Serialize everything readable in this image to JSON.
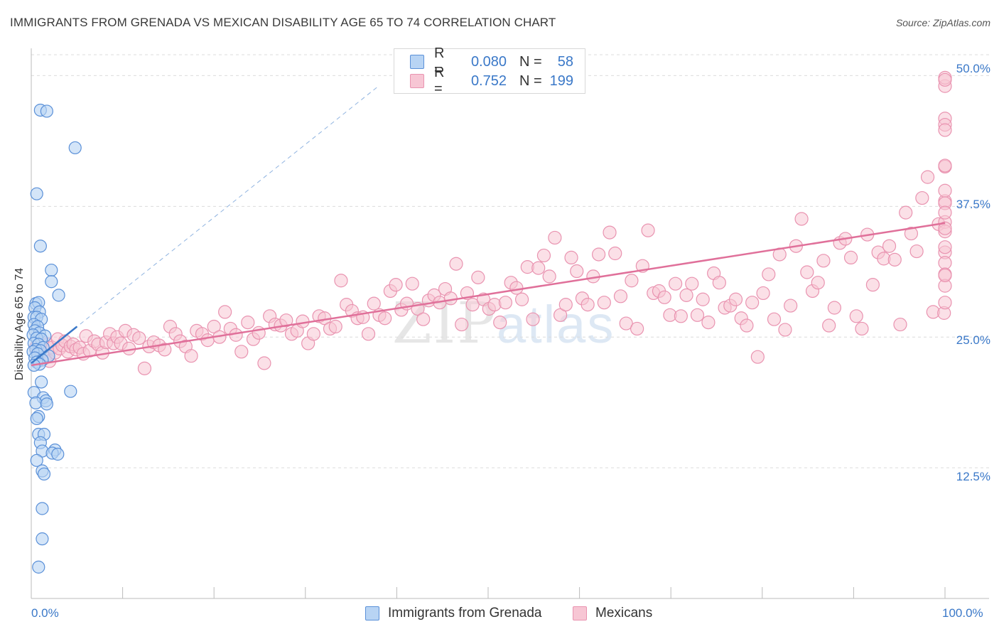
{
  "header": {
    "title": "IMMIGRANTS FROM GRENADA VS MEXICAN DISABILITY AGE 65 TO 74 CORRELATION CHART",
    "source": "Source: ZipAtlas.com"
  },
  "watermark": {
    "zip": "ZIP",
    "atlas": "atlas"
  },
  "legend": {
    "rows": [
      {
        "r_label": "R =",
        "r_value": "0.080",
        "n_label": "N =",
        "n_value": "58"
      },
      {
        "r_label": "R =",
        "r_value": "0.752",
        "n_label": "N =",
        "n_value": "199"
      }
    ]
  },
  "colors": {
    "blue_fill": "#b8d4f4",
    "blue_stroke": "#5a90d8",
    "blue_line": "#3a78c8",
    "pink_fill": "#f7c6d4",
    "pink_stroke": "#e993b0",
    "pink_line": "#e0709a",
    "grid": "#dcdcdc",
    "tick_text": "#3a78c8"
  },
  "chart_data": {
    "type": "scatter",
    "title": "IMMIGRANTS FROM GRENADA VS MEXICAN DISABILITY AGE 65 TO 74 CORRELATION CHART",
    "xlabel": "",
    "ylabel": "Disability Age 65 to 74",
    "xlim": [
      0,
      100
    ],
    "ylim": [
      0,
      52
    ],
    "x_tick_labels": [
      "0.0%",
      "100.0%"
    ],
    "y_ticks": [
      12.5,
      25.0,
      37.5,
      50.0
    ],
    "y_tick_labels": [
      "12.5%",
      "25.0%",
      "37.5%",
      "50.0%"
    ],
    "grid": true,
    "legend_position": "top-center",
    "series": [
      {
        "name": "Immigrants from Grenada",
        "color": "#5a90d8",
        "R": 0.08,
        "N": 58,
        "trend": {
          "x": [
            0,
            5
          ],
          "y": [
            22.5,
            26.0
          ]
        },
        "trend_extended": {
          "x": [
            0,
            38
          ],
          "y": [
            22.5,
            49.0
          ]
        },
        "points": [
          [
            1.0,
            46.7
          ],
          [
            1.7,
            46.6
          ],
          [
            4.8,
            43.1
          ],
          [
            0.6,
            38.7
          ],
          [
            1.0,
            33.7
          ],
          [
            2.2,
            31.4
          ],
          [
            2.2,
            30.3
          ],
          [
            3.0,
            29.0
          ],
          [
            0.5,
            28.2
          ],
          [
            0.8,
            28.3
          ],
          [
            0.4,
            27.8
          ],
          [
            0.9,
            27.4
          ],
          [
            0.3,
            26.9
          ],
          [
            0.6,
            26.9
          ],
          [
            1.1,
            26.7
          ],
          [
            0.3,
            26.2
          ],
          [
            0.7,
            26.0
          ],
          [
            0.4,
            25.6
          ],
          [
            0.9,
            25.4
          ],
          [
            1.5,
            25.1
          ],
          [
            0.2,
            25.2
          ],
          [
            0.6,
            24.9
          ],
          [
            1.1,
            24.8
          ],
          [
            0.3,
            24.4
          ],
          [
            0.8,
            24.3
          ],
          [
            1.3,
            24.0
          ],
          [
            0.5,
            23.8
          ],
          [
            1.0,
            23.7
          ],
          [
            0.2,
            23.6
          ],
          [
            0.7,
            23.4
          ],
          [
            1.9,
            23.2
          ],
          [
            0.4,
            23.0
          ],
          [
            1.2,
            22.8
          ],
          [
            0.6,
            22.6
          ],
          [
            0.9,
            22.4
          ],
          [
            0.3,
            22.3
          ],
          [
            1.1,
            20.7
          ],
          [
            4.3,
            19.8
          ],
          [
            0.3,
            19.7
          ],
          [
            1.3,
            19.2
          ],
          [
            1.6,
            18.9
          ],
          [
            0.5,
            18.7
          ],
          [
            1.7,
            18.6
          ],
          [
            0.8,
            17.4
          ],
          [
            0.6,
            17.2
          ],
          [
            0.8,
            15.7
          ],
          [
            1.4,
            15.7
          ],
          [
            1.0,
            14.9
          ],
          [
            2.6,
            14.2
          ],
          [
            1.2,
            14.1
          ],
          [
            2.3,
            13.9
          ],
          [
            2.9,
            13.8
          ],
          [
            0.6,
            13.2
          ],
          [
            1.2,
            12.2
          ],
          [
            1.4,
            11.9
          ],
          [
            1.2,
            8.6
          ],
          [
            1.2,
            5.7
          ],
          [
            0.8,
            3.0
          ]
        ]
      },
      {
        "name": "Mexicans",
        "color": "#e993b0",
        "R": 0.752,
        "N": 199,
        "trend": {
          "x": [
            0,
            100
          ],
          "y": [
            22.3,
            35.9
          ]
        },
        "points": [
          [
            0.5,
            24.0
          ],
          [
            0.8,
            23.7
          ],
          [
            1.2,
            24.5
          ],
          [
            1.5,
            23.0
          ],
          [
            1.8,
            24.3
          ],
          [
            2.0,
            22.7
          ],
          [
            2.3,
            24.0
          ],
          [
            2.6,
            23.5
          ],
          [
            2.9,
            24.8
          ],
          [
            3.1,
            23.9
          ],
          [
            3.4,
            24.2
          ],
          [
            3.7,
            24.6
          ],
          [
            4.0,
            23.6
          ],
          [
            4.3,
            24.1
          ],
          [
            4.6,
            24.3
          ],
          [
            4.9,
            23.8
          ],
          [
            5.3,
            24.0
          ],
          [
            5.7,
            23.4
          ],
          [
            6.0,
            25.1
          ],
          [
            6.4,
            23.7
          ],
          [
            6.9,
            24.6
          ],
          [
            7.3,
            24.3
          ],
          [
            7.8,
            23.5
          ],
          [
            8.2,
            24.5
          ],
          [
            8.6,
            25.3
          ],
          [
            9.0,
            24.4
          ],
          [
            9.4,
            25.0
          ],
          [
            9.8,
            24.4
          ],
          [
            10.3,
            25.6
          ],
          [
            10.7,
            23.9
          ],
          [
            11.2,
            25.2
          ],
          [
            11.8,
            24.9
          ],
          [
            12.4,
            22.0
          ],
          [
            12.9,
            24.1
          ],
          [
            13.4,
            24.5
          ],
          [
            14.0,
            24.2
          ],
          [
            14.6,
            23.8
          ],
          [
            15.2,
            26.0
          ],
          [
            15.8,
            25.3
          ],
          [
            16.3,
            24.6
          ],
          [
            16.9,
            24.1
          ],
          [
            17.5,
            23.2
          ],
          [
            18.1,
            25.6
          ],
          [
            18.7,
            25.3
          ],
          [
            19.3,
            24.7
          ],
          [
            20.0,
            26.0
          ],
          [
            20.6,
            25.0
          ],
          [
            21.2,
            27.4
          ],
          [
            21.8,
            25.8
          ],
          [
            22.4,
            25.2
          ],
          [
            23.0,
            23.6
          ],
          [
            23.7,
            26.4
          ],
          [
            24.3,
            24.8
          ],
          [
            24.9,
            25.4
          ],
          [
            25.5,
            22.5
          ],
          [
            26.1,
            27.0
          ],
          [
            26.7,
            26.2
          ],
          [
            27.3,
            26.1
          ],
          [
            27.9,
            26.6
          ],
          [
            28.5,
            25.3
          ],
          [
            29.1,
            25.6
          ],
          [
            29.7,
            26.5
          ],
          [
            30.3,
            24.4
          ],
          [
            30.9,
            25.3
          ],
          [
            31.5,
            27.0
          ],
          [
            32.1,
            26.8
          ],
          [
            32.7,
            25.8
          ],
          [
            33.3,
            26.0
          ],
          [
            33.9,
            30.4
          ],
          [
            34.5,
            28.1
          ],
          [
            35.1,
            27.5
          ],
          [
            35.7,
            26.8
          ],
          [
            36.3,
            26.9
          ],
          [
            36.9,
            25.3
          ],
          [
            37.5,
            28.2
          ],
          [
            38.1,
            27.1
          ],
          [
            38.7,
            26.8
          ],
          [
            39.3,
            29.4
          ],
          [
            39.9,
            30.0
          ],
          [
            40.5,
            27.6
          ],
          [
            41.1,
            28.2
          ],
          [
            41.7,
            30.1
          ],
          [
            42.3,
            27.7
          ],
          [
            42.9,
            26.7
          ],
          [
            43.5,
            28.5
          ],
          [
            44.1,
            29.0
          ],
          [
            44.7,
            28.3
          ],
          [
            45.3,
            29.6
          ],
          [
            45.9,
            28.7
          ],
          [
            46.5,
            32.0
          ],
          [
            47.1,
            26.2
          ],
          [
            47.7,
            29.2
          ],
          [
            48.3,
            28.1
          ],
          [
            48.9,
            30.7
          ],
          [
            49.5,
            28.6
          ],
          [
            50.1,
            27.7
          ],
          [
            50.7,
            28.1
          ],
          [
            51.3,
            26.4
          ],
          [
            51.9,
            28.3
          ],
          [
            52.5,
            30.2
          ],
          [
            53.1,
            29.7
          ],
          [
            53.7,
            28.6
          ],
          [
            54.3,
            31.7
          ],
          [
            54.9,
            26.7
          ],
          [
            55.5,
            31.6
          ],
          [
            56.1,
            32.8
          ],
          [
            56.7,
            30.8
          ],
          [
            57.3,
            34.5
          ],
          [
            57.9,
            27.1
          ],
          [
            58.5,
            28.1
          ],
          [
            59.1,
            32.6
          ],
          [
            59.7,
            31.3
          ],
          [
            60.3,
            28.7
          ],
          [
            60.9,
            28.1
          ],
          [
            61.5,
            30.8
          ],
          [
            62.1,
            32.9
          ],
          [
            62.7,
            28.3
          ],
          [
            63.3,
            35.0
          ],
          [
            63.9,
            33.0
          ],
          [
            64.5,
            28.9
          ],
          [
            65.1,
            26.3
          ],
          [
            65.7,
            30.4
          ],
          [
            66.3,
            25.8
          ],
          [
            66.9,
            31.8
          ],
          [
            67.5,
            35.2
          ],
          [
            68.1,
            29.2
          ],
          [
            68.7,
            29.4
          ],
          [
            69.3,
            28.8
          ],
          [
            69.9,
            27.1
          ],
          [
            70.5,
            30.1
          ],
          [
            71.1,
            27.0
          ],
          [
            71.7,
            29.0
          ],
          [
            72.3,
            30.1
          ],
          [
            72.9,
            27.1
          ],
          [
            73.5,
            28.6
          ],
          [
            74.1,
            26.4
          ],
          [
            74.7,
            31.1
          ],
          [
            75.3,
            30.2
          ],
          [
            75.9,
            27.8
          ],
          [
            76.5,
            28.0
          ],
          [
            77.1,
            28.6
          ],
          [
            77.7,
            26.8
          ],
          [
            78.3,
            26.1
          ],
          [
            78.9,
            28.3
          ],
          [
            79.5,
            23.1
          ],
          [
            80.1,
            29.2
          ],
          [
            80.7,
            31.0
          ],
          [
            81.3,
            26.7
          ],
          [
            81.9,
            32.9
          ],
          [
            82.5,
            25.7
          ],
          [
            83.1,
            28.0
          ],
          [
            83.7,
            33.7
          ],
          [
            84.3,
            36.3
          ],
          [
            84.9,
            31.2
          ],
          [
            85.5,
            29.4
          ],
          [
            86.1,
            30.2
          ],
          [
            86.7,
            32.3
          ],
          [
            87.3,
            26.1
          ],
          [
            87.9,
            27.8
          ],
          [
            88.5,
            34.0
          ],
          [
            89.1,
            34.4
          ],
          [
            89.7,
            32.6
          ],
          [
            90.3,
            27.0
          ],
          [
            90.9,
            25.8
          ],
          [
            91.5,
            34.8
          ],
          [
            92.1,
            30.0
          ],
          [
            92.7,
            33.1
          ],
          [
            93.3,
            32.5
          ],
          [
            93.9,
            33.7
          ],
          [
            94.5,
            32.4
          ],
          [
            95.1,
            26.2
          ],
          [
            95.7,
            36.9
          ],
          [
            96.3,
            34.9
          ],
          [
            96.9,
            33.2
          ],
          [
            97.5,
            38.3
          ],
          [
            98.1,
            40.3
          ],
          [
            98.7,
            27.4
          ],
          [
            99.3,
            35.8
          ],
          [
            99.9,
            27.3
          ],
          [
            100.0,
            33.1
          ],
          [
            100.0,
            38.0
          ],
          [
            100.0,
            36.0
          ],
          [
            100.0,
            35.1
          ],
          [
            100.0,
            32.1
          ],
          [
            100.0,
            31.0
          ],
          [
            100.0,
            39.0
          ],
          [
            100.0,
            37.8
          ],
          [
            100.0,
            41.3
          ],
          [
            100.0,
            41.4
          ],
          [
            100.0,
            29.9
          ],
          [
            100.0,
            45.9
          ],
          [
            100.0,
            45.3
          ],
          [
            100.0,
            44.8
          ],
          [
            100.0,
            49.0
          ],
          [
            100.0,
            49.8
          ],
          [
            100.0,
            49.6
          ],
          [
            100.0,
            28.3
          ],
          [
            100.0,
            36.9
          ],
          [
            100.0,
            35.4
          ],
          [
            100.0,
            33.6
          ],
          [
            100.0,
            30.9
          ]
        ]
      }
    ]
  }
}
